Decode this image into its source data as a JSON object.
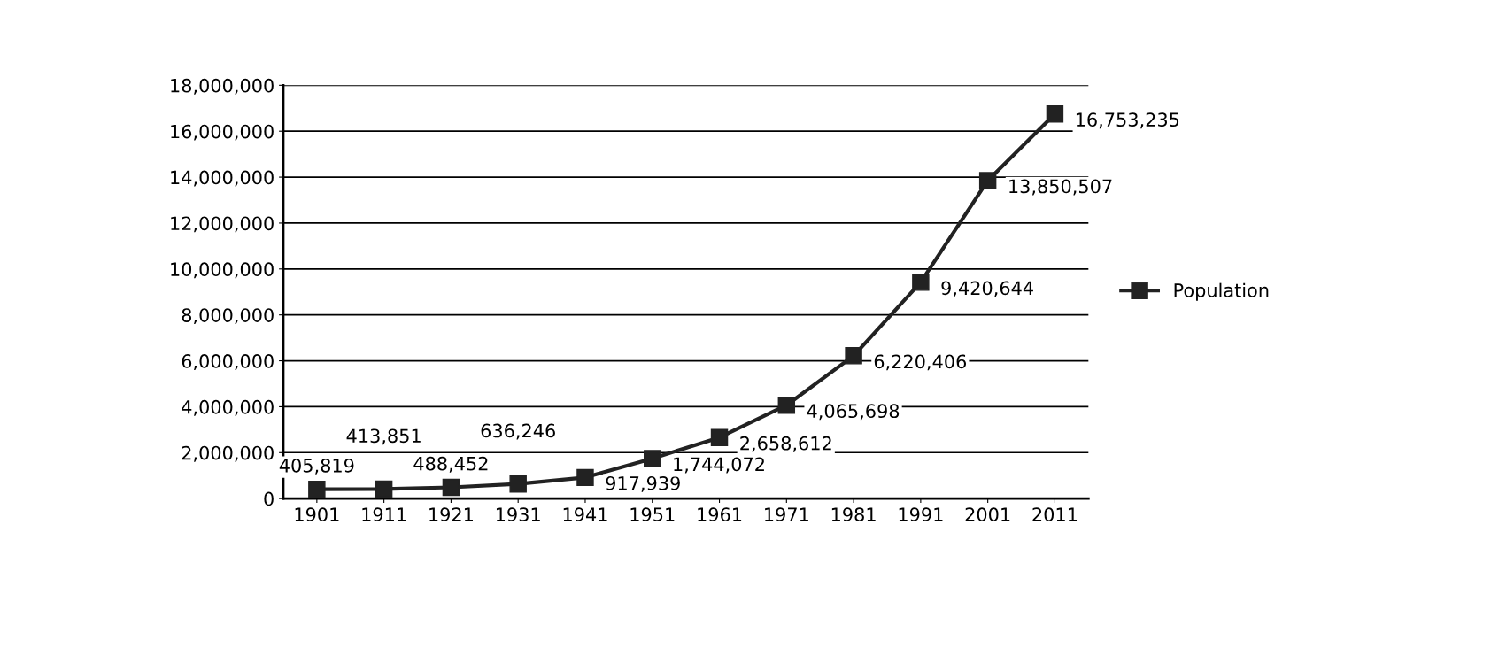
{
  "chart_data": {
    "type": "line",
    "categories": [
      "1901",
      "1911",
      "1921",
      "1931",
      "1941",
      "1951",
      "1961",
      "1971",
      "1981",
      "1991",
      "2001",
      "2011"
    ],
    "series": [
      {
        "name": "Population",
        "color": "#222222",
        "values": [
          405819,
          413851,
          488452,
          636246,
          917939,
          1744072,
          2658612,
          4065698,
          6220406,
          9420644,
          13850507,
          16753235
        ],
        "value_labels": [
          "405,819",
          "413,851",
          "488,452",
          "636,246",
          "917,939",
          "1,744,072",
          "2,658,612",
          "4,065,698",
          "6,220,406",
          "9,420,644",
          "13,850,507",
          "16,753,235"
        ]
      }
    ],
    "ylim": [
      0,
      18000000
    ],
    "yticks": [
      {
        "value": 0,
        "label": "0"
      },
      {
        "value": 2000000,
        "label": "2,000,000"
      },
      {
        "value": 4000000,
        "label": "4,000,000"
      },
      {
        "value": 6000000,
        "label": "6,000,000"
      },
      {
        "value": 8000000,
        "label": "8,000,000"
      },
      {
        "value": 10000000,
        "label": "10,000,000"
      },
      {
        "value": 12000000,
        "label": "12,000,000"
      },
      {
        "value": 14000000,
        "label": "14,000,000"
      },
      {
        "value": 16000000,
        "label": "16,000,000"
      },
      {
        "value": 18000000,
        "label": "18,000,000"
      }
    ],
    "grid": "y",
    "legend": "right",
    "marker": "square",
    "line_style": "solid"
  }
}
